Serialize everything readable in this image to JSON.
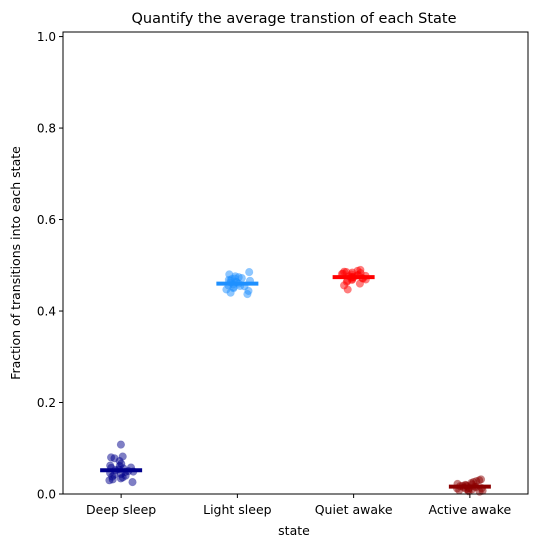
{
  "chart_data": {
    "type": "scatter",
    "title": "Quantify the average transtion of each State",
    "xlabel": "state",
    "ylabel": "Fraction of transitions into each state",
    "categories": [
      "Deep sleep",
      "Light sleep",
      "Quiet awake",
      "Active awake"
    ],
    "ylim": [
      0.0,
      1.01
    ],
    "yticks": [
      "0.0",
      "0.2",
      "0.4",
      "0.6",
      "0.8",
      "1.0"
    ],
    "grid": false,
    "series": [
      {
        "category": "Deep sleep",
        "color": "#00008b",
        "mean": 0.052,
        "points": [
          0.108,
          0.082,
          0.08,
          0.078,
          0.072,
          0.066,
          0.062,
          0.058,
          0.056,
          0.054,
          0.052,
          0.05,
          0.048,
          0.046,
          0.044,
          0.042,
          0.04,
          0.038,
          0.036,
          0.034,
          0.032,
          0.03,
          0.026,
          0.049,
          0.057,
          0.061
        ]
      },
      {
        "category": "Light sleep",
        "color": "#1e90ff",
        "mean": 0.46,
        "points": [
          0.485,
          0.48,
          0.476,
          0.474,
          0.472,
          0.47,
          0.468,
          0.466,
          0.464,
          0.462,
          0.46,
          0.458,
          0.456,
          0.454,
          0.452,
          0.45,
          0.447,
          0.444,
          0.44,
          0.437,
          0.463,
          0.467,
          0.455,
          0.471
        ]
      },
      {
        "category": "Quiet awake",
        "color": "#ff0000",
        "mean": 0.474,
        "points": [
          0.49,
          0.488,
          0.486,
          0.485,
          0.484,
          0.482,
          0.481,
          0.48,
          0.479,
          0.478,
          0.477,
          0.476,
          0.475,
          0.474,
          0.473,
          0.472,
          0.47,
          0.468,
          0.466,
          0.464,
          0.46,
          0.456,
          0.447,
          0.483,
          0.471,
          0.469
        ]
      },
      {
        "category": "Active awake",
        "color": "#8b0000",
        "mean": 0.016,
        "points": [
          0.032,
          0.03,
          0.028,
          0.026,
          0.024,
          0.022,
          0.02,
          0.019,
          0.018,
          0.017,
          0.016,
          0.015,
          0.014,
          0.013,
          0.012,
          0.011,
          0.01,
          0.009,
          0.008,
          0.007,
          0.006,
          0.005,
          0.021,
          0.013,
          0.017
        ]
      }
    ]
  }
}
